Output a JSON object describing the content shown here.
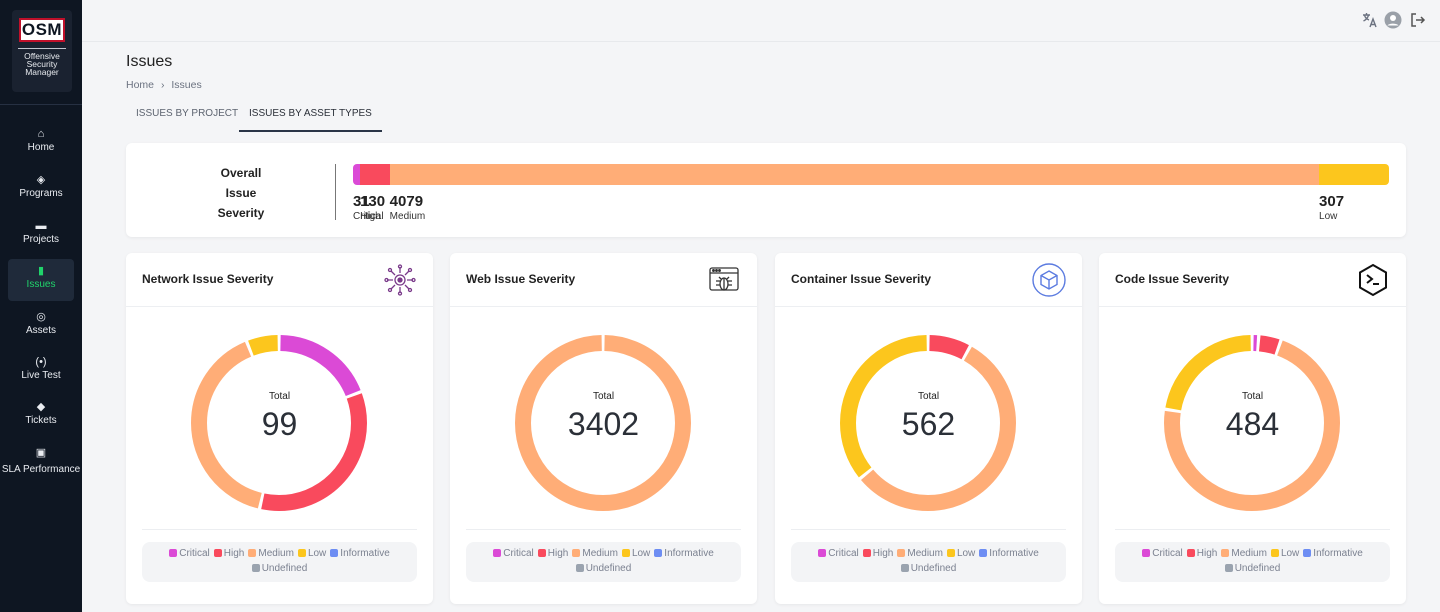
{
  "app": {
    "logo_text": "OSM",
    "logo_subtitle": [
      "Offensive",
      "Security",
      "Manager"
    ]
  },
  "sidebar": {
    "items": [
      {
        "label": "Home",
        "icon": "home-icon",
        "active": false
      },
      {
        "label": "Programs",
        "icon": "layers-icon",
        "active": false
      },
      {
        "label": "Projects",
        "icon": "folder-icon",
        "active": false
      },
      {
        "label": "Issues",
        "icon": "file-icon",
        "active": true
      },
      {
        "label": "Assets",
        "icon": "target-icon",
        "active": false
      },
      {
        "label": "Live Test",
        "icon": "broadcast-icon",
        "active": false
      },
      {
        "label": "Tickets",
        "icon": "tag-icon",
        "active": false
      },
      {
        "label": "SLA Performance",
        "icon": "sla-icon",
        "active": false
      }
    ]
  },
  "topbar": {
    "icons": [
      "translate-icon",
      "account-icon",
      "logout-icon"
    ]
  },
  "page": {
    "title": "Issues",
    "breadcrumb": [
      "Home",
      "Issues"
    ],
    "breadcrumb_separator": "›",
    "tabs": [
      {
        "label": "ISSUES BY PROJECT",
        "active": false
      },
      {
        "label": "ISSUES BY ASSET TYPES",
        "active": true
      }
    ]
  },
  "overall": {
    "label_lines": [
      "Overall",
      "Issue",
      "Severity"
    ],
    "segments": [
      {
        "name": "Critical",
        "value": 31,
        "color": "#db4ad6"
      },
      {
        "name": "High",
        "value": 130,
        "color": "#f94a5d"
      },
      {
        "name": "Medium",
        "value": 4079,
        "color": "#ffad77"
      },
      {
        "name": "Low",
        "value": 307,
        "color": "#fcc61d"
      }
    ]
  },
  "severity_colors": {
    "Critical": "#db4ad6",
    "High": "#f94a5d",
    "Medium": "#ffad77",
    "Low": "#fcc61d",
    "Informative": "#6d8df3",
    "Undefined": "#9aa3af"
  },
  "legend_items": [
    "Critical",
    "High",
    "Medium",
    "Low",
    "Informative",
    "Undefined"
  ],
  "cards": [
    {
      "title": "Network Issue Severity",
      "icon": "network-icon",
      "total_label": "Total",
      "total": "99",
      "chart_data": {
        "type": "pie",
        "values": [
          {
            "name": "Critical",
            "value": 19
          },
          {
            "name": "High",
            "value": 34
          },
          {
            "name": "Medium",
            "value": 40
          },
          {
            "name": "Low",
            "value": 6
          }
        ]
      }
    },
    {
      "title": "Web Issue Severity",
      "icon": "web-bug-icon",
      "total_label": "Total",
      "total": "3402",
      "chart_data": {
        "type": "pie",
        "values": [
          {
            "name": "Medium",
            "value": 3402
          }
        ]
      }
    },
    {
      "title": "Container Issue Severity",
      "icon": "container-icon",
      "total_label": "Total",
      "total": "562",
      "chart_data": {
        "type": "pie",
        "values": [
          {
            "name": "High",
            "value": 45
          },
          {
            "name": "Medium",
            "value": 315
          },
          {
            "name": "Low",
            "value": 202
          }
        ]
      }
    },
    {
      "title": "Code Issue Severity",
      "icon": "terminal-icon",
      "total_label": "Total",
      "total": "484",
      "chart_data": {
        "type": "pie",
        "values": [
          {
            "name": "Critical",
            "value": 6
          },
          {
            "name": "High",
            "value": 20
          },
          {
            "name": "Medium",
            "value": 349
          },
          {
            "name": "Low",
            "value": 109
          }
        ]
      }
    }
  ]
}
